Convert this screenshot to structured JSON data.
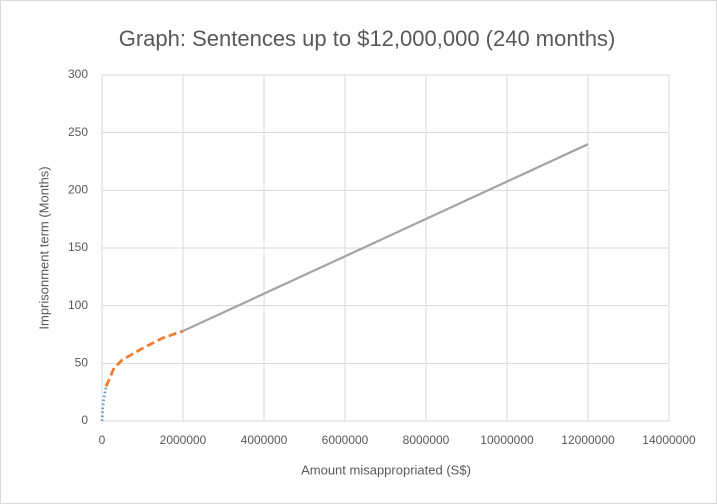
{
  "chart_data": {
    "type": "line",
    "title": "Graph: Sentences up to $12,000,000 (240 months)",
    "x_label": "Amount misappropriated (S$)",
    "y_label": "Imprisonment term (Months)",
    "series": [
      {
        "color": "#5b9bd5",
        "dash": "dotted",
        "x": [
          0,
          20000,
          50000,
          100000
        ],
        "values": [
          0,
          12,
          20,
          30
        ]
      },
      {
        "color": "#ed7d31",
        "dash": "dashed",
        "x": [
          100000,
          300000,
          500000,
          1000000,
          1500000,
          2000000
        ],
        "values": [
          30,
          46,
          53,
          63,
          72,
          78
        ]
      },
      {
        "color": "#a5a5a5",
        "dash": "solid",
        "x": [
          2000000,
          12000000
        ],
        "values": [
          78,
          240
        ]
      }
    ],
    "xlim": [
      0,
      14000000
    ],
    "xticks": [
      0,
      2000000,
      4000000,
      6000000,
      8000000,
      10000000,
      12000000,
      14000000
    ],
    "ylim": [
      0,
      300
    ],
    "yticks": [
      0,
      50,
      100,
      150,
      200,
      250,
      300
    ],
    "grid": true
  }
}
